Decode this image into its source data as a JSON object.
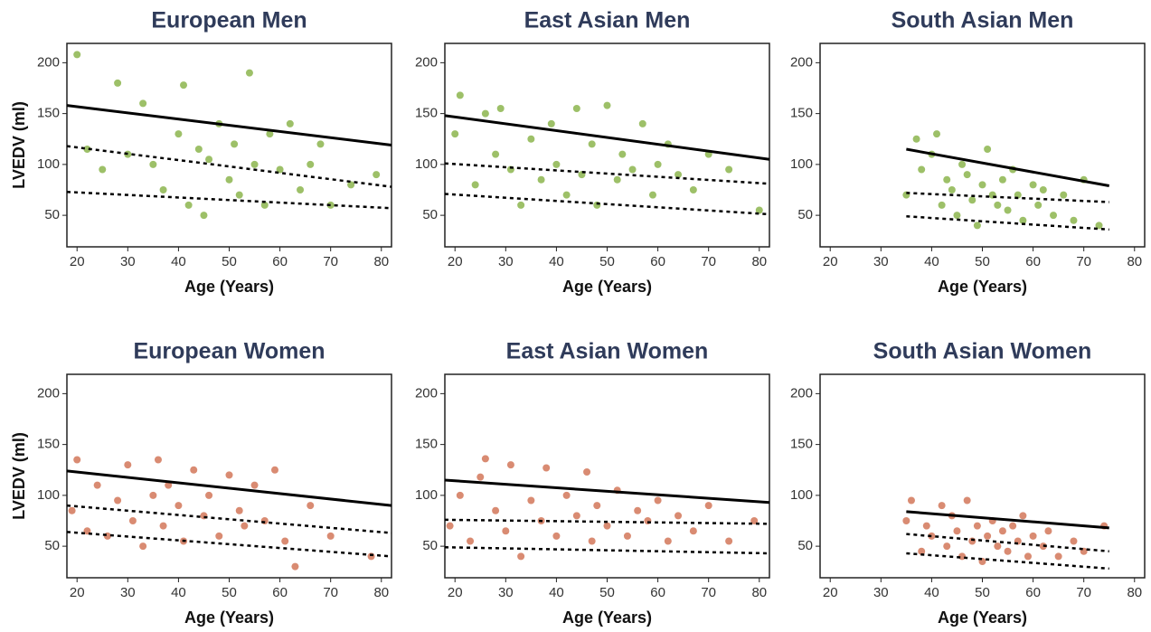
{
  "chart_data": [
    {
      "type": "scatter",
      "title": "European Men",
      "x_label": "Age (Years)",
      "y_label": "LVEDV (ml)",
      "color": "#9dc068",
      "xlim": [
        18,
        82
      ],
      "ylim": [
        19,
        219
      ],
      "xticks": [
        20,
        30,
        40,
        50,
        60,
        70,
        80
      ],
      "yticks": [
        50,
        100,
        150,
        200
      ],
      "x": [
        20,
        22,
        25,
        28,
        30,
        33,
        35,
        37,
        40,
        41,
        42,
        44,
        45,
        46,
        48,
        50,
        51,
        52,
        54,
        55,
        57,
        58,
        60,
        62,
        64,
        66,
        68,
        70,
        74,
        79
      ],
      "y": [
        208,
        115,
        95,
        180,
        110,
        160,
        100,
        75,
        130,
        178,
        60,
        115,
        50,
        105,
        140,
        85,
        120,
        70,
        190,
        100,
        60,
        130,
        95,
        140,
        75,
        100,
        120,
        60,
        80,
        90
      ],
      "lines": [
        {
          "style": "solid",
          "x": [
            18,
            82
          ],
          "y": [
            158,
            119
          ]
        },
        {
          "style": "dashed",
          "x": [
            18,
            82
          ],
          "y": [
            118,
            78
          ]
        },
        {
          "style": "dashed",
          "x": [
            18,
            82
          ],
          "y": [
            73,
            57
          ]
        }
      ]
    },
    {
      "type": "scatter",
      "title": "East Asian Men",
      "x_label": "Age (Years)",
      "color": "#9dc068",
      "xlim": [
        18,
        82
      ],
      "ylim": [
        19,
        219
      ],
      "xticks": [
        20,
        30,
        40,
        50,
        60,
        70,
        80
      ],
      "yticks": [
        50,
        100,
        150,
        200
      ],
      "x": [
        20,
        21,
        24,
        26,
        28,
        29,
        31,
        33,
        35,
        37,
        39,
        40,
        42,
        44,
        45,
        47,
        48,
        50,
        52,
        53,
        55,
        57,
        59,
        60,
        62,
        64,
        67,
        70,
        74,
        80
      ],
      "y": [
        130,
        168,
        80,
        150,
        110,
        155,
        95,
        60,
        125,
        85,
        140,
        100,
        70,
        155,
        90,
        120,
        60,
        158,
        85,
        110,
        95,
        140,
        70,
        100,
        120,
        90,
        75,
        110,
        95,
        55
      ],
      "lines": [
        {
          "style": "solid",
          "x": [
            18,
            82
          ],
          "y": [
            148,
            105
          ]
        },
        {
          "style": "dashed",
          "x": [
            18,
            82
          ],
          "y": [
            101,
            81
          ]
        },
        {
          "style": "dashed",
          "x": [
            18,
            82
          ],
          "y": [
            71,
            51
          ]
        }
      ]
    },
    {
      "type": "scatter",
      "title": "South Asian Men",
      "x_label": "Age (Years)",
      "color": "#9dc068",
      "xlim": [
        18,
        82
      ],
      "ylim": [
        19,
        219
      ],
      "xticks": [
        20,
        30,
        40,
        50,
        60,
        70,
        80
      ],
      "yticks": [
        50,
        100,
        150,
        200
      ],
      "x": [
        35,
        37,
        38,
        40,
        41,
        42,
        43,
        44,
        45,
        46,
        47,
        48,
        49,
        50,
        51,
        52,
        53,
        54,
        55,
        56,
        57,
        58,
        60,
        61,
        62,
        64,
        66,
        68,
        70,
        73
      ],
      "y": [
        70,
        125,
        95,
        110,
        130,
        60,
        85,
        75,
        50,
        100,
        90,
        65,
        40,
        80,
        115,
        70,
        60,
        85,
        55,
        95,
        70,
        45,
        80,
        60,
        75,
        50,
        70,
        45,
        85,
        40
      ],
      "lines": [
        {
          "style": "solid",
          "x": [
            35,
            75
          ],
          "y": [
            115,
            79
          ]
        },
        {
          "style": "dashed",
          "x": [
            35,
            75
          ],
          "y": [
            72,
            63
          ]
        },
        {
          "style": "dashed",
          "x": [
            35,
            75
          ],
          "y": [
            49,
            36
          ]
        }
      ]
    },
    {
      "type": "scatter",
      "title": "European Women",
      "x_label": "Age (Years)",
      "y_label": "LVEDV (ml)",
      "color": "#d98b72",
      "xlim": [
        18,
        82
      ],
      "ylim": [
        19,
        219
      ],
      "xticks": [
        20,
        30,
        40,
        50,
        60,
        70,
        80
      ],
      "yticks": [
        50,
        100,
        150,
        200
      ],
      "x": [
        19,
        20,
        22,
        24,
        26,
        28,
        30,
        31,
        33,
        35,
        36,
        37,
        38,
        40,
        41,
        43,
        45,
        46,
        48,
        50,
        52,
        53,
        55,
        57,
        59,
        61,
        63,
        66,
        70,
        78
      ],
      "y": [
        85,
        135,
        65,
        110,
        60,
        95,
        130,
        75,
        50,
        100,
        135,
        70,
        110,
        90,
        55,
        125,
        80,
        100,
        60,
        120,
        85,
        70,
        110,
        75,
        125,
        55,
        30,
        90,
        60,
        40
      ],
      "lines": [
        {
          "style": "solid",
          "x": [
            18,
            82
          ],
          "y": [
            124,
            90
          ]
        },
        {
          "style": "dashed",
          "x": [
            18,
            82
          ],
          "y": [
            90,
            63
          ]
        },
        {
          "style": "dashed",
          "x": [
            18,
            82
          ],
          "y": [
            64,
            40
          ]
        }
      ]
    },
    {
      "type": "scatter",
      "title": "East Asian Women",
      "x_label": "Age (Years)",
      "color": "#d98b72",
      "xlim": [
        18,
        82
      ],
      "ylim": [
        19,
        219
      ],
      "xticks": [
        20,
        30,
        40,
        50,
        60,
        70,
        80
      ],
      "yticks": [
        50,
        100,
        150,
        200
      ],
      "x": [
        19,
        21,
        23,
        25,
        26,
        28,
        30,
        31,
        33,
        35,
        37,
        38,
        40,
        42,
        44,
        46,
        47,
        48,
        50,
        52,
        54,
        56,
        58,
        60,
        62,
        64,
        67,
        70,
        74,
        79
      ],
      "y": [
        70,
        100,
        55,
        118,
        136,
        85,
        65,
        130,
        40,
        95,
        75,
        127,
        60,
        100,
        80,
        123,
        55,
        90,
        70,
        105,
        60,
        85,
        75,
        95,
        55,
        80,
        65,
        90,
        55,
        75
      ],
      "lines": [
        {
          "style": "solid",
          "x": [
            18,
            82
          ],
          "y": [
            115,
            93
          ]
        },
        {
          "style": "dashed",
          "x": [
            18,
            82
          ],
          "y": [
            76,
            72
          ]
        },
        {
          "style": "dashed",
          "x": [
            18,
            82
          ],
          "y": [
            49,
            43
          ]
        }
      ]
    },
    {
      "type": "scatter",
      "title": "South Asian Women",
      "x_label": "Age (Years)",
      "color": "#d98b72",
      "xlim": [
        18,
        82
      ],
      "ylim": [
        19,
        219
      ],
      "xticks": [
        20,
        30,
        40,
        50,
        60,
        70,
        80
      ],
      "yticks": [
        50,
        100,
        150,
        200
      ],
      "x": [
        35,
        36,
        38,
        39,
        40,
        42,
        43,
        44,
        45,
        46,
        47,
        48,
        49,
        50,
        51,
        52,
        53,
        54,
        55,
        56,
        57,
        58,
        59,
        60,
        62,
        63,
        65,
        68,
        70,
        74
      ],
      "y": [
        75,
        95,
        45,
        70,
        60,
        90,
        50,
        80,
        65,
        40,
        95,
        55,
        70,
        35,
        60,
        75,
        50,
        65,
        45,
        70,
        55,
        80,
        40,
        60,
        50,
        65,
        40,
        55,
        45,
        70
      ],
      "lines": [
        {
          "style": "solid",
          "x": [
            35,
            75
          ],
          "y": [
            84,
            68
          ]
        },
        {
          "style": "dashed",
          "x": [
            35,
            75
          ],
          "y": [
            62,
            45
          ]
        },
        {
          "style": "dashed",
          "x": [
            35,
            75
          ],
          "y": [
            43,
            28
          ]
        }
      ]
    }
  ]
}
